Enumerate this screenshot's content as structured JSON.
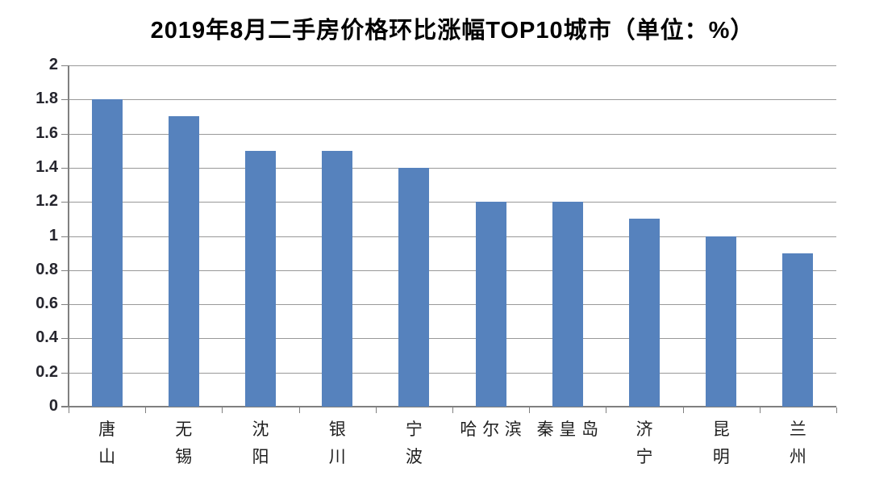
{
  "chart_data": {
    "type": "bar",
    "title": "2019年8月二手房价格环比涨幅TOP10城市（单位：%）",
    "categories": [
      "唐山",
      "无锡",
      "沈阳",
      "银川",
      "宁波",
      "哈尔滨",
      "秦皇岛",
      "济宁",
      "昆明",
      "兰州"
    ],
    "values": [
      1.8,
      1.7,
      1.5,
      1.5,
      1.4,
      1.2,
      1.2,
      1.1,
      1.0,
      0.9
    ],
    "xlabel": "",
    "ylabel": "",
    "ylim": [
      0,
      2
    ],
    "ytick_step": 0.2,
    "yticks": [
      "0",
      "0.2",
      "0.4",
      "0.6",
      "0.8",
      "1",
      "1.2",
      "1.4",
      "1.6",
      "1.8",
      "2"
    ],
    "grid": true,
    "legend": false,
    "colors": {
      "bar": "#5682BD",
      "gridline": "#999999",
      "axis": "#808080",
      "tick": "#808080",
      "y_label_text": "#26262e",
      "x_label_text": "#1f1f1f",
      "title_text": "#000000"
    }
  }
}
